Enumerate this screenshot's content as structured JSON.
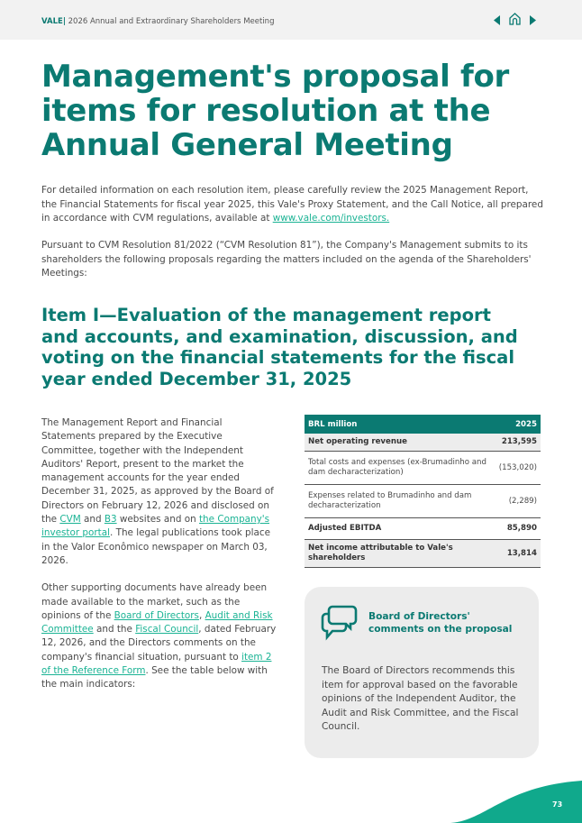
{
  "header": {
    "brand": "VALE",
    "separator": "|",
    "title": "2026 Annual and Extraordinary Shareholders Meeting"
  },
  "title": "Management's proposal for items for resolution at the Annual General Meeting",
  "intro": {
    "p1": "For detailed information on each resolution item, please carefully review the 2025 Management Report, the Financial Statements for fiscal year 2025, this Vale's Proxy Statement, and the Call Notice, all prepared in accordance with CVM regulations, available at ",
    "p1_link": "www.vale.com/investors.",
    "p2": "Pursuant to CVM Resolution 81/2022 (“CVM Resolution 81”), the Company's Management submits to its shareholders the following proposals regarding the matters included on the agenda of the Shareholders' Meetings:"
  },
  "item_heading": "Item I—Evaluation of the management report and accounts, and examination, discussion, and voting on the financial statements for the fiscal year ended December 31, 2025",
  "left": {
    "a1": "The Management Report and Financial Statements prepared by the Executive Committee, together with the Independent Auditors' Report, present to the market the management accounts for the year ended December 31, 2025, as approved by the Board of Directors on February 12, 2026 and disclosed on the ",
    "l_cvm": "CVM",
    "a2": " and ",
    "l_b3": "B3",
    "a3": " websites and on ",
    "l_portal": "the Company's investor portal",
    "a4": ". The legal publications took place in the Valor Econômico newspaper on March 03, 2026.",
    "b1": "Other supporting documents have already been made available to the market, such as the opinions of the ",
    "l_board": "Board of Directors",
    "b2": ", ",
    "l_audit": "Audit and Risk Committee",
    "b3": " and the ",
    "l_fiscal": "Fiscal Council",
    "b4": ", dated February 12, 2026, and the Directors comments on the company's financial situation, pursuant to ",
    "l_item2": "item 2 of the Reference Form",
    "b5": ". See the table below with the main indicators:"
  },
  "table": {
    "headers": [
      "BRL million",
      "2025"
    ],
    "rows": [
      {
        "label": "Net operating revenue",
        "value": "213,595"
      },
      {
        "label": "Total costs and expenses (ex-Brumadinho and dam decharacterization)",
        "value": "(153,020)"
      },
      {
        "label": "Expenses related to Brumadinho and dam decharacterization",
        "value": "(2,289)"
      },
      {
        "label": "Adjusted EBITDA",
        "value": "85,890"
      },
      {
        "label": "Net income attributable to Vale's shareholders",
        "value": "13,814"
      }
    ]
  },
  "comments": {
    "icon": "speech-bubbles-icon",
    "heading": "Board of Directors' comments on the proposal",
    "body": "The Board of Directors recommends this item for approval based on the favorable opinions of the Independent Auditor, the Audit and Risk Committee, and the Fiscal Council."
  },
  "page_number": "73",
  "colors": {
    "primary": "#0b7a72",
    "link": "#1ab394",
    "wave": "#10a98c"
  }
}
